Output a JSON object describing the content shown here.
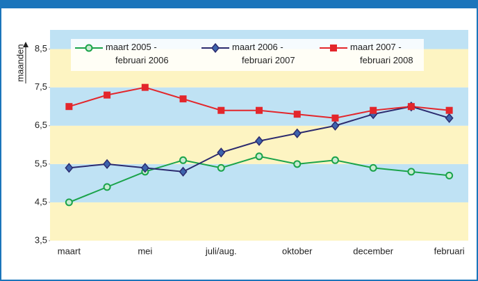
{
  "chart_data": {
    "type": "line",
    "y_label": "maanden",
    "categories": [
      "maart",
      null,
      "mei",
      null,
      "juli/aug.",
      null,
      "oktober",
      null,
      "december",
      null,
      "februari"
    ],
    "series": [
      {
        "name": "maart 2005 - februari 2006",
        "color": "#1aa34a",
        "marker": "circle",
        "values": [
          4.5,
          4.9,
          5.3,
          5.6,
          5.4,
          5.7,
          5.5,
          5.6,
          5.4,
          5.3,
          5.2
        ]
      },
      {
        "name": "maart 2006 - februari 2007",
        "color": "#2b2a6e",
        "marker": "diamond",
        "values": [
          5.4,
          5.5,
          5.4,
          5.3,
          5.8,
          6.1,
          6.3,
          6.5,
          6.8,
          7.0,
          6.7
        ]
      },
      {
        "name": "maart 2007 - februari 2008",
        "color": "#e3262b",
        "marker": "square",
        "values": [
          7.0,
          7.3,
          7.5,
          7.2,
          6.9,
          6.9,
          6.8,
          6.7,
          6.9,
          7.0,
          6.9
        ]
      }
    ],
    "ylim": [
      3.5,
      9
    ],
    "yticks": [
      {
        "value": 3.5,
        "label": "3,5"
      },
      {
        "value": 4.5,
        "label": "4,5"
      },
      {
        "value": 5.5,
        "label": "5,5"
      },
      {
        "value": 6.5,
        "label": "6,5"
      },
      {
        "value": 7.5,
        "label": "7,5"
      },
      {
        "value": 8.5,
        "label": "8,5"
      }
    ],
    "band_colors": [
      "#fdf4c2",
      "#bfe2f4"
    ],
    "legend": "top"
  }
}
